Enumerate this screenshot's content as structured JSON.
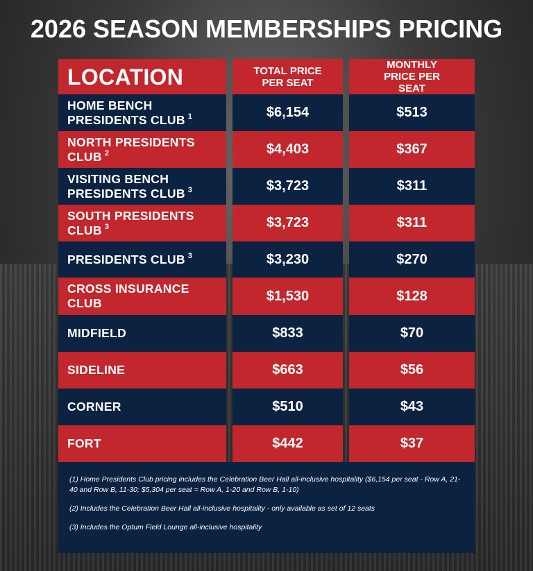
{
  "title": "2026 SEASON MEMBERSHIPS PRICING",
  "headers": {
    "location": "LOCATION",
    "total": "TOTAL PRICE PER SEAT",
    "monthly": "MONTHLY PRICE PER SEAT"
  },
  "colors": {
    "red": "#c1272d",
    "navy": "#0b2241"
  },
  "rows": [
    {
      "location": "HOME BENCH PRESIDENTS CLUB",
      "note": "1",
      "total": "$6,154",
      "monthly": "$513"
    },
    {
      "location": "NORTH PRESIDENTS CLUB",
      "note": "2",
      "total": "$4,403",
      "monthly": "$367"
    },
    {
      "location": "VISITING BENCH PRESIDENTS CLUB",
      "note": "3",
      "total": "$3,723",
      "monthly": "$311"
    },
    {
      "location": "SOUTH PRESIDENTS CLUB",
      "note": "3",
      "total": "$3,723",
      "monthly": "$311"
    },
    {
      "location": "PRESIDENTS CLUB",
      "note": "3",
      "total": "$3,230",
      "monthly": "$270"
    },
    {
      "location": "CROSS INSURANCE CLUB",
      "note": "",
      "total": "$1,530",
      "monthly": "$128"
    },
    {
      "location": "MIDFIELD",
      "note": "",
      "total": "$833",
      "monthly": "$70"
    },
    {
      "location": "SIDELINE",
      "note": "",
      "total": "$663",
      "monthly": "$56"
    },
    {
      "location": "CORNER",
      "note": "",
      "total": "$510",
      "monthly": "$43"
    },
    {
      "location": "FORT",
      "note": "",
      "total": "$442",
      "monthly": "$37"
    }
  ],
  "footnotes": [
    "(1) Home Presidents Club pricing includes the Celebration Beer Hall all-inclusive hospitality ($6,154 per seat - Row A, 21-40 and Row B, 11-30; $5,304 per seat = Row A, 1-20 and Row B, 1-10)",
    "(2) Includes the Celebration Beer Hall all-inclusive hospitality - only available as set of 12 seats",
    "(3) Includes the Optum Field Lounge all-inclusive hospitality"
  ]
}
